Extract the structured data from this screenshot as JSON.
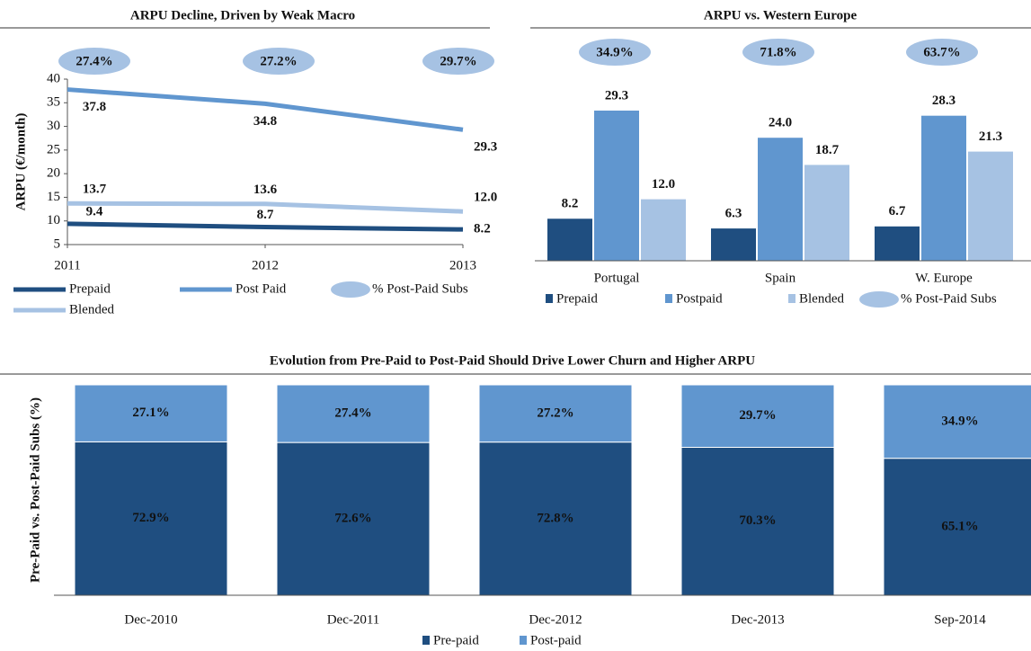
{
  "chart_data": [
    {
      "type": "line",
      "title": "ARPU Decline, Driven by Weak Macro",
      "y_label": "ARPU (€/month)",
      "categories": [
        "2011",
        "2012",
        "2013"
      ],
      "ylim": [
        5,
        40
      ],
      "yticks": [
        5,
        10,
        15,
        20,
        25,
        30,
        35,
        40
      ],
      "series": [
        {
          "name": "Prepaid",
          "color": "#1f4e80",
          "values": [
            9.4,
            8.7,
            8.2
          ],
          "value_labels": [
            "9.4",
            "8.7",
            "8.2"
          ]
        },
        {
          "name": "Post Paid",
          "color": "#6096cf",
          "values": [
            37.8,
            34.8,
            29.3
          ],
          "value_labels": [
            "37.8",
            "34.8",
            "29.3"
          ]
        },
        {
          "name": "Blended",
          "color": "#a6c2e3",
          "values": [
            13.7,
            13.6,
            12.0
          ],
          "value_labels": [
            "13.7",
            "13.6",
            "12.0"
          ]
        }
      ],
      "bubbles": {
        "name": "% Post-Paid Subs",
        "color": "#a6c2e3",
        "values": [
          27.4,
          27.2,
          29.7
        ],
        "value_labels": [
          "27.4%",
          "27.2%",
          "29.7%"
        ]
      }
    },
    {
      "type": "bar",
      "title": "ARPU vs. Western Europe",
      "categories": [
        "Portugal",
        "Spain",
        "W. Europe"
      ],
      "series": [
        {
          "name": "Prepaid",
          "color": "#1f4e80",
          "values": [
            8.2,
            6.3,
            6.7
          ],
          "value_labels": [
            "8.2",
            "6.3",
            "6.7"
          ]
        },
        {
          "name": "Postpaid",
          "color": "#6096cf",
          "values": [
            29.3,
            24.0,
            28.3
          ],
          "value_labels": [
            "29.3",
            "24.0",
            "28.3"
          ]
        },
        {
          "name": "Blended",
          "color": "#a6c2e3",
          "values": [
            12.0,
            18.7,
            21.3
          ],
          "value_labels": [
            "12.0",
            "18.7",
            "21.3"
          ]
        }
      ],
      "bubbles": {
        "name": "% Post-Paid Subs",
        "color": "#a6c2e3",
        "values": [
          34.9,
          71.8,
          63.7
        ],
        "value_labels": [
          "34.9%",
          "71.8%",
          "63.7%"
        ]
      }
    },
    {
      "type": "stacked_bar",
      "title": "Evolution from Pre-Paid to Post-Paid Should Drive Lower Churn and Higher ARPU",
      "y_label": "Pre-Paid vs. Post-Paid Subs (%)",
      "categories": [
        "Dec-2010",
        "Dec-2011",
        "Dec-2012",
        "Dec-2013",
        "Sep-2014"
      ],
      "series": [
        {
          "name": "Pre-paid",
          "color": "#1f4e80",
          "values": [
            72.9,
            72.6,
            72.8,
            70.3,
            65.1
          ],
          "value_labels": [
            "72.9%",
            "72.6%",
            "72.8%",
            "70.3%",
            "65.1%"
          ]
        },
        {
          "name": "Post-paid",
          "color": "#6096cf",
          "values": [
            27.1,
            27.4,
            27.2,
            29.7,
            34.9
          ],
          "value_labels": [
            "27.1%",
            "27.4%",
            "27.2%",
            "29.7%",
            "34.9%"
          ]
        }
      ]
    }
  ]
}
